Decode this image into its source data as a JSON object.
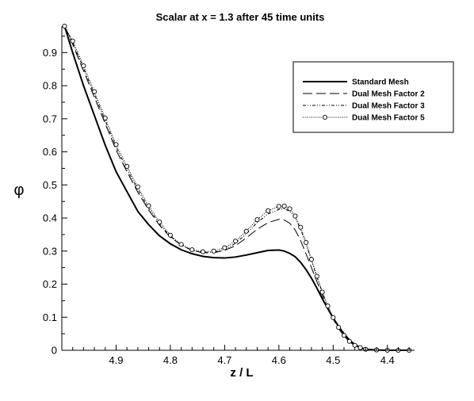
{
  "chart_data": {
    "type": "line",
    "title": "Scalar at x = 1.3 after 45 time units",
    "xlabel": "z / L",
    "ylabel": "φ",
    "xlim": [
      5.0,
      4.35
    ],
    "ylim": [
      0,
      0.98
    ],
    "x_reversed": true,
    "grid": false,
    "legend_position": "top-right",
    "x_ticks": [
      4.9,
      4.8,
      4.7,
      4.6,
      4.5,
      4.4
    ],
    "x_tick_labels": [
      "4.9",
      "4.8",
      "4.7",
      "4.6",
      "4.5",
      "4.4"
    ],
    "y_ticks": [
      0,
      0.1,
      0.2,
      0.3,
      0.4,
      0.5,
      0.6,
      0.7,
      0.8,
      0.9
    ],
    "y_tick_labels": [
      "0",
      "0.1",
      "0.2",
      "0.3",
      "0.4",
      "0.5",
      "0.6",
      "0.7",
      "0.8",
      "0.9"
    ],
    "series": [
      {
        "name": "Standard Mesh",
        "style": "solid",
        "color": "#000000",
        "x": [
          4.995,
          4.98,
          4.96,
          4.94,
          4.92,
          4.9,
          4.88,
          4.86,
          4.84,
          4.82,
          4.8,
          4.78,
          4.76,
          4.74,
          4.72,
          4.7,
          4.68,
          4.66,
          4.64,
          4.62,
          4.6,
          4.59,
          4.58,
          4.57,
          4.56,
          4.55,
          4.54,
          4.53,
          4.52,
          4.51,
          4.5,
          4.49,
          4.48,
          4.47,
          4.46,
          4.45,
          4.44,
          4.42,
          4.4,
          4.38,
          4.36
        ],
        "y": [
          0.98,
          0.9,
          0.8,
          0.71,
          0.62,
          0.54,
          0.48,
          0.42,
          0.38,
          0.346,
          0.322,
          0.304,
          0.292,
          0.284,
          0.28,
          0.279,
          0.282,
          0.288,
          0.295,
          0.302,
          0.303,
          0.3,
          0.293,
          0.283,
          0.266,
          0.244,
          0.218,
          0.188,
          0.156,
          0.126,
          0.098,
          0.072,
          0.05,
          0.031,
          0.017,
          0.008,
          0.003,
          0.001,
          0.0,
          0.0,
          0.0
        ]
      },
      {
        "name": "Dual Mesh Factor 2",
        "style": "dashed",
        "color": "#000000",
        "x": [
          4.995,
          4.98,
          4.96,
          4.94,
          4.92,
          4.9,
          4.88,
          4.86,
          4.84,
          4.82,
          4.8,
          4.78,
          4.76,
          4.74,
          4.72,
          4.7,
          4.68,
          4.66,
          4.64,
          4.62,
          4.6,
          4.59,
          4.58,
          4.57,
          4.56,
          4.55,
          4.54,
          4.53,
          4.52,
          4.51,
          4.5,
          4.49,
          4.48,
          4.47,
          4.46,
          4.45,
          4.44,
          4.42,
          4.4,
          4.38,
          4.36
        ],
        "y": [
          0.98,
          0.925,
          0.845,
          0.765,
          0.685,
          0.605,
          0.54,
          0.478,
          0.424,
          0.378,
          0.342,
          0.318,
          0.302,
          0.295,
          0.295,
          0.302,
          0.316,
          0.34,
          0.366,
          0.386,
          0.396,
          0.394,
          0.384,
          0.364,
          0.332,
          0.292,
          0.25,
          0.208,
          0.166,
          0.128,
          0.095,
          0.066,
          0.043,
          0.026,
          0.014,
          0.007,
          0.003,
          0.001,
          0.0,
          0.0,
          0.0
        ]
      },
      {
        "name": "Dual Mesh Factor 3",
        "style": "dashdotdot",
        "color": "#000000",
        "x": [
          4.995,
          4.98,
          4.96,
          4.94,
          4.92,
          4.9,
          4.88,
          4.86,
          4.84,
          4.82,
          4.8,
          4.78,
          4.76,
          4.74,
          4.72,
          4.7,
          4.68,
          4.66,
          4.64,
          4.62,
          4.6,
          4.59,
          4.58,
          4.57,
          4.56,
          4.55,
          4.54,
          4.53,
          4.52,
          4.51,
          4.5,
          4.49,
          4.48,
          4.47,
          4.46,
          4.45,
          4.44,
          4.42,
          4.4,
          4.38,
          4.36
        ],
        "y": [
          0.98,
          0.93,
          0.853,
          0.774,
          0.694,
          0.614,
          0.548,
          0.486,
          0.43,
          0.382,
          0.344,
          0.318,
          0.302,
          0.295,
          0.296,
          0.305,
          0.323,
          0.352,
          0.386,
          0.412,
          0.426,
          0.428,
          0.42,
          0.4,
          0.366,
          0.322,
          0.272,
          0.222,
          0.175,
          0.133,
          0.098,
          0.068,
          0.044,
          0.026,
          0.014,
          0.007,
          0.003,
          0.001,
          0.0,
          0.0,
          0.0
        ]
      },
      {
        "name": "Dual Mesh Factor 5",
        "style": "dotted-circles",
        "color": "#000000",
        "x": [
          4.995,
          4.98,
          4.96,
          4.94,
          4.92,
          4.9,
          4.88,
          4.86,
          4.84,
          4.82,
          4.8,
          4.78,
          4.76,
          4.74,
          4.72,
          4.7,
          4.68,
          4.66,
          4.64,
          4.62,
          4.6,
          4.59,
          4.58,
          4.57,
          4.56,
          4.55,
          4.54,
          4.53,
          4.52,
          4.51,
          4.5,
          4.49,
          4.48,
          4.47,
          4.46,
          4.45,
          4.44,
          4.42,
          4.4,
          4.38,
          4.36
        ],
        "y": [
          0.98,
          0.935,
          0.86,
          0.782,
          0.702,
          0.622,
          0.556,
          0.494,
          0.437,
          0.388,
          0.348,
          0.32,
          0.304,
          0.298,
          0.3,
          0.31,
          0.33,
          0.36,
          0.395,
          0.422,
          0.435,
          0.436,
          0.428,
          0.406,
          0.372,
          0.326,
          0.275,
          0.224,
          0.176,
          0.134,
          0.099,
          0.069,
          0.045,
          0.027,
          0.015,
          0.008,
          0.003,
          0.001,
          0.0,
          0.0,
          0.0
        ]
      }
    ]
  }
}
